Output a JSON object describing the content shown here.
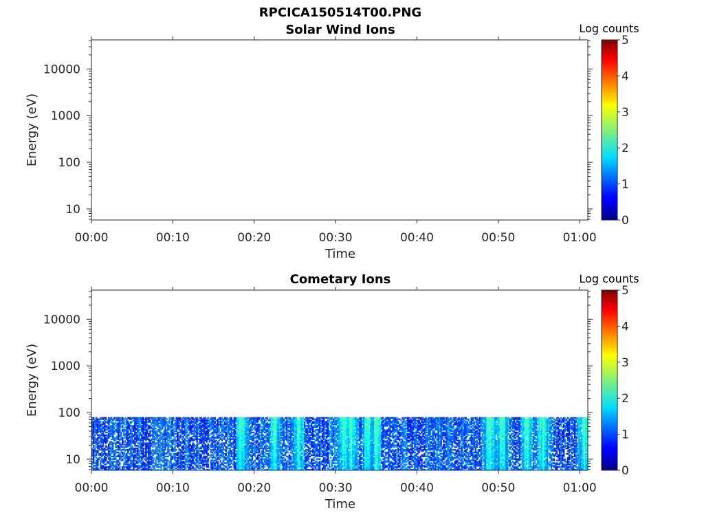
{
  "figure_title": "RPCICA150514T00.PNG",
  "chart_data": [
    {
      "type": "heatmap",
      "title": "Solar Wind Ions",
      "xlabel": "Time",
      "ylabel": "Energy (eV)",
      "x_ticks": [
        "00:00",
        "00:10",
        "00:20",
        "00:30",
        "00:40",
        "00:50",
        "01:00"
      ],
      "y_ticks": [
        "10",
        "100",
        "1000",
        "10000"
      ],
      "y_scale": "log",
      "xlim_minutes": [
        0,
        61
      ],
      "ylim_eV": [
        5.8,
        42000
      ],
      "colorbar": {
        "label": "Log counts",
        "ticks": [
          "0",
          "1",
          "2",
          "3",
          "4",
          "5"
        ],
        "range": [
          0,
          5
        ],
        "colormap": "jet"
      },
      "data": "empty"
    },
    {
      "type": "heatmap",
      "title": "Cometary Ions",
      "xlabel": "Time",
      "ylabel": "Energy (eV)",
      "x_ticks": [
        "00:00",
        "00:10",
        "00:20",
        "00:30",
        "00:40",
        "00:50",
        "01:00"
      ],
      "y_ticks": [
        "10",
        "100",
        "1000",
        "10000"
      ],
      "y_scale": "log",
      "xlim_minutes": [
        0,
        61
      ],
      "ylim_eV": [
        5.8,
        42000
      ],
      "colorbar": {
        "label": "Log counts",
        "ticks": [
          "0",
          "1",
          "2",
          "3",
          "4",
          "5"
        ],
        "range": [
          0,
          5
        ],
        "colormap": "jet"
      },
      "energy_range_eV": [
        5.8,
        80
      ],
      "intensity_log_counts": {
        "min": 0,
        "typical": 1,
        "max": 2.3
      },
      "intense_times_minutes": [
        18.5,
        22.5,
        25.5,
        31.0,
        32.0,
        34.0,
        35.0,
        49.0,
        50.5,
        53.5,
        55.5,
        60.5
      ]
    }
  ]
}
